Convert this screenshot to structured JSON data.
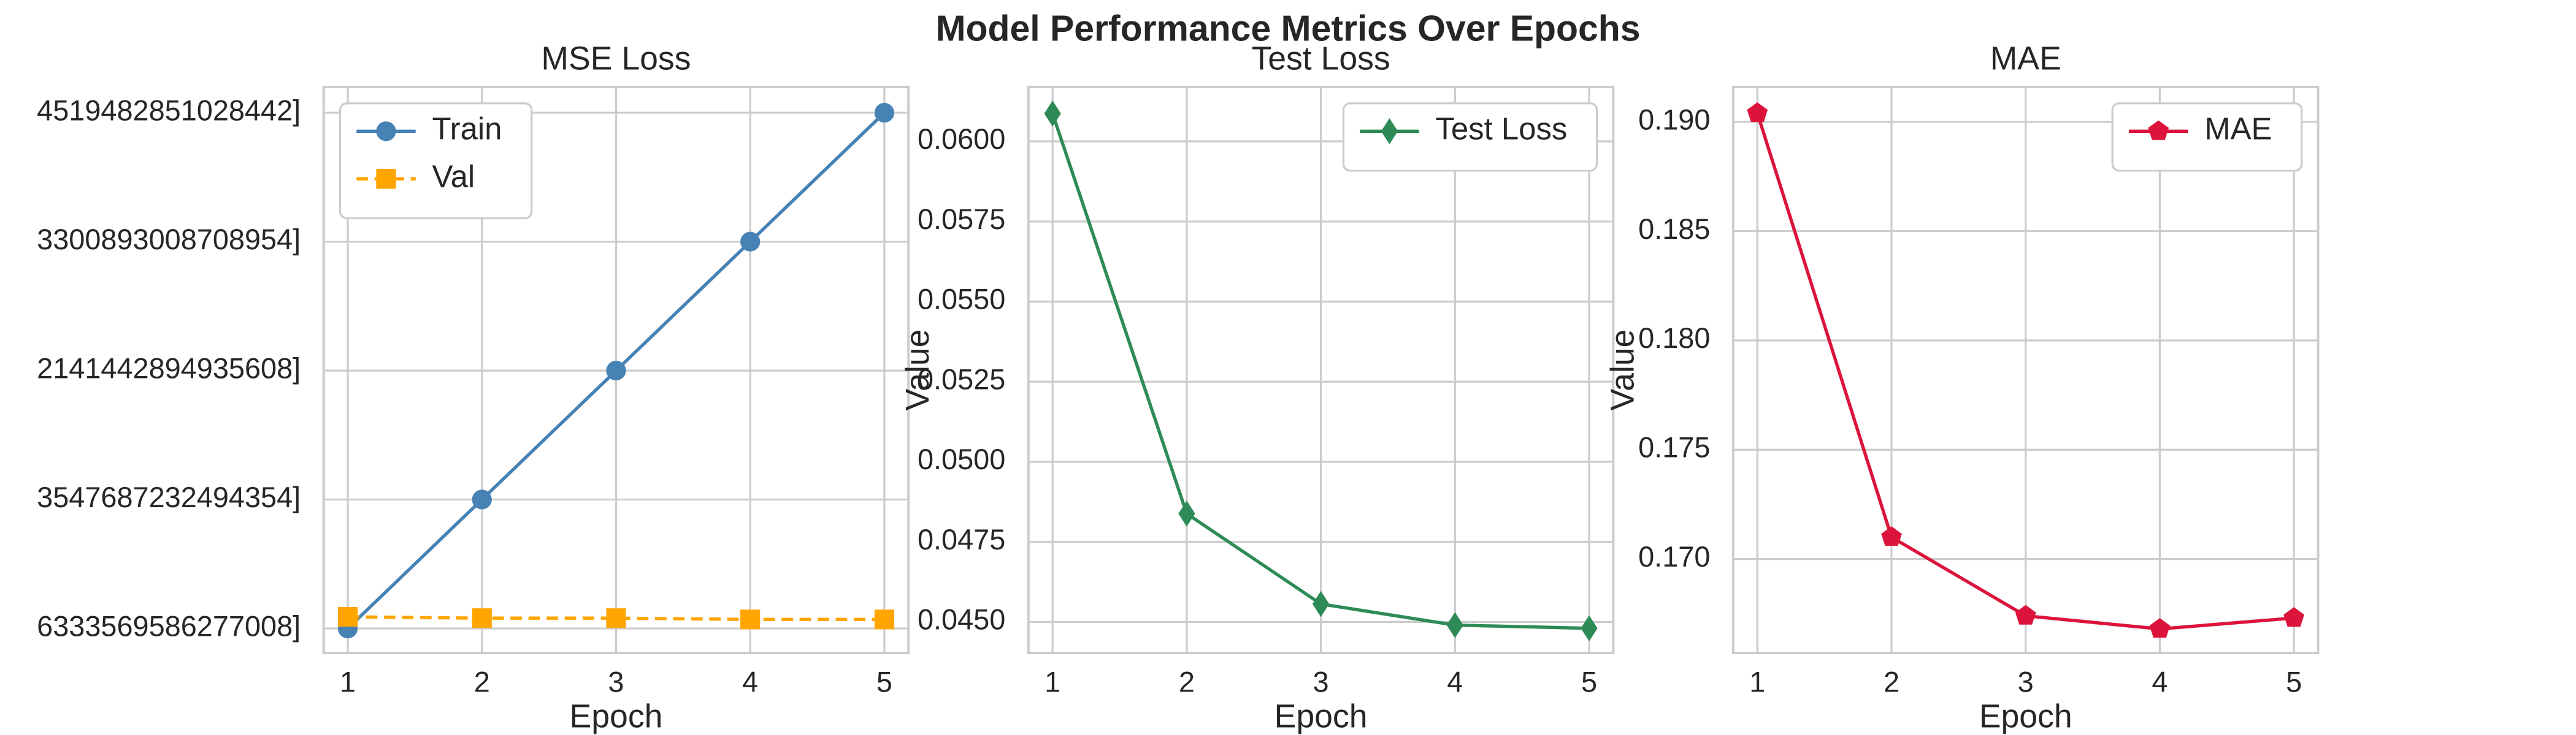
{
  "title": "Model Performance Metrics Over Epochs",
  "chart_data": [
    {
      "type": "line",
      "title": "MSE Loss",
      "xlabel": "Epoch",
      "x": [
        1,
        2,
        3,
        4,
        5
      ],
      "xlim": [
        0.82,
        5.18
      ],
      "xticks": [
        1,
        2,
        3,
        4,
        5
      ],
      "ylim": [
        -0.19,
        4.2
      ],
      "yticks": [
        {
          "value": 0,
          "label": "6333569586277008]"
        },
        {
          "value": 1,
          "label": "3547687232494354]"
        },
        {
          "value": 2,
          "label": "2141442894935608]"
        },
        {
          "value": 3,
          "label": "3300893008708954]"
        },
        {
          "value": 4,
          "label": "4519482851028442]"
        }
      ],
      "grid": true,
      "legend": "upper left",
      "series": [
        {
          "name": "Train",
          "color": "#4682b4",
          "marker": "circle",
          "linestyle": "solid",
          "values": [
            0,
            1,
            2,
            3,
            4
          ]
        },
        {
          "name": "Val",
          "color": "#ffa500",
          "marker": "square",
          "linestyle": "dashed",
          "values": [
            0.09,
            0.08,
            0.08,
            0.07,
            0.07
          ]
        }
      ]
    },
    {
      "type": "line",
      "title": "Test Loss",
      "xlabel": "Epoch",
      "ylabel": "Value",
      "x": [
        1,
        2,
        3,
        4,
        5
      ],
      "xlim": [
        0.82,
        5.18
      ],
      "xticks": [
        1,
        2,
        3,
        4,
        5
      ],
      "ylim": [
        0.04403,
        0.0617
      ],
      "yticks": [
        {
          "value": 0.045,
          "label": "0.0450"
        },
        {
          "value": 0.0475,
          "label": "0.0475"
        },
        {
          "value": 0.05,
          "label": "0.0500"
        },
        {
          "value": 0.0525,
          "label": "0.0525"
        },
        {
          "value": 0.055,
          "label": "0.0550"
        },
        {
          "value": 0.0575,
          "label": "0.0575"
        },
        {
          "value": 0.06,
          "label": "0.0600"
        }
      ],
      "grid": true,
      "legend": "upper right",
      "series": [
        {
          "name": "Test Loss",
          "color": "#2e8b57",
          "marker": "diamond",
          "linestyle": "solid",
          "values": [
            0.06087,
            0.04838,
            0.04556,
            0.0449,
            0.0448
          ]
        }
      ]
    },
    {
      "type": "line",
      "title": "MAE",
      "xlabel": "Epoch",
      "ylabel": "Value",
      "x": [
        1,
        2,
        3,
        4,
        5
      ],
      "xlim": [
        0.82,
        5.18
      ],
      "xticks": [
        1,
        2,
        3,
        4,
        5
      ],
      "ylim": [
        0.1657,
        0.1916
      ],
      "yticks": [
        {
          "value": 0.17,
          "label": "0.170"
        },
        0.175,
        {
          "value": 0.18,
          "label": "0.180"
        },
        0.185,
        {
          "value": 0.19,
          "label": "0.190"
        }
      ],
      "grid": true,
      "legend": "upper right",
      "series": [
        {
          "name": "MAE",
          "color": "#dc143c",
          "marker": "pentagon",
          "linestyle": "solid",
          "values": [
            0.1904,
            0.171,
            0.1674,
            0.1668,
            0.1673
          ]
        }
      ]
    }
  ]
}
